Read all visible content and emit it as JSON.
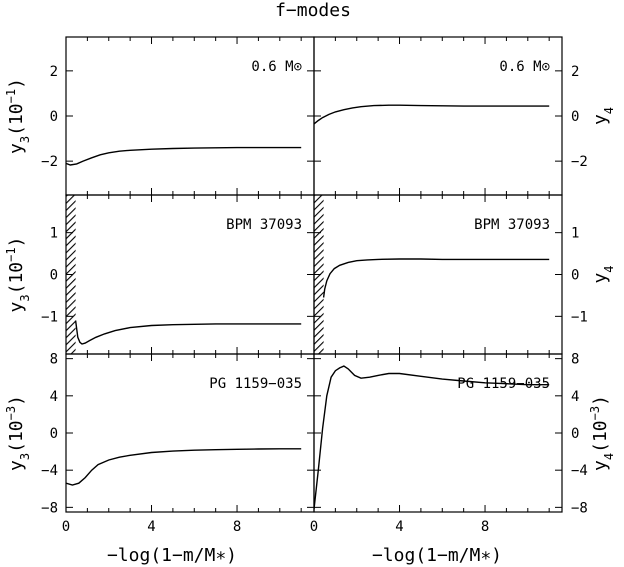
{
  "title": "f−modes",
  "xlabel": "−log(1−m/M∗)",
  "chart_data": [
    {
      "type": "line",
      "label": "0.6 M⊙",
      "ylabel": "y3(10⁻¹)",
      "ylabel_parts": {
        "base": "y",
        "sub": "3",
        "pre": "(10",
        "sup": "−1",
        "post": ")"
      },
      "xlim": [
        0,
        11.6
      ],
      "ylim": [
        -3.5,
        3.5
      ],
      "yticks": [
        -2,
        0,
        2
      ],
      "xticks": [
        0,
        4,
        8
      ],
      "hatch": null,
      "x": [
        0,
        0.2,
        0.5,
        0.8,
        1.2,
        1.6,
        2,
        2.5,
        3,
        4,
        5,
        6,
        7,
        8,
        9,
        10,
        11
      ],
      "y": [
        -2.1,
        -2.17,
        -2.12,
        -2.0,
        -1.85,
        -1.72,
        -1.63,
        -1.56,
        -1.52,
        -1.47,
        -1.44,
        -1.42,
        -1.41,
        -1.4,
        -1.4,
        -1.4,
        -1.4
      ]
    },
    {
      "type": "line",
      "label": "0.6 M⊙",
      "ylabel": "y4",
      "ylabel_parts": {
        "base": "y",
        "sub": "4",
        "pre": "",
        "sup": "",
        "post": ""
      },
      "xlim": [
        0,
        11.6
      ],
      "ylim": [
        -3.5,
        3.5
      ],
      "yticks": [
        -2,
        0,
        2
      ],
      "xticks": [
        0,
        4,
        8
      ],
      "hatch": null,
      "x": [
        0,
        0.2,
        0.4,
        0.7,
        1,
        1.4,
        1.8,
        2.2,
        2.8,
        3.5,
        4,
        5,
        6,
        7,
        8,
        9,
        10,
        11
      ],
      "y": [
        -0.35,
        -0.2,
        -0.07,
        0.07,
        0.18,
        0.28,
        0.36,
        0.41,
        0.46,
        0.48,
        0.48,
        0.46,
        0.45,
        0.44,
        0.44,
        0.44,
        0.44,
        0.44
      ]
    },
    {
      "type": "line",
      "label": "BPM 37093",
      "ylabel": "y3(10⁻¹)",
      "ylabel_parts": {
        "base": "y",
        "sub": "3",
        "pre": "(10",
        "sup": "−1",
        "post": ")"
      },
      "xlim": [
        0,
        11.6
      ],
      "ylim": [
        -1.9,
        1.9
      ],
      "yticks": [
        -1,
        0,
        1
      ],
      "xticks": [
        0,
        4,
        8
      ],
      "hatch": [
        0,
        0.45
      ],
      "x": [
        0.45,
        0.55,
        0.65,
        0.75,
        0.9,
        1.1,
        1.4,
        1.8,
        2.3,
        3,
        4,
        5,
        6,
        7,
        8,
        9,
        10,
        11
      ],
      "y": [
        -1.1,
        -1.5,
        -1.62,
        -1.66,
        -1.64,
        -1.58,
        -1.5,
        -1.42,
        -1.34,
        -1.27,
        -1.22,
        -1.2,
        -1.19,
        -1.18,
        -1.18,
        -1.18,
        -1.18,
        -1.18
      ]
    },
    {
      "type": "line",
      "label": "BPM 37093",
      "ylabel": "y4",
      "ylabel_parts": {
        "base": "y",
        "sub": "4",
        "pre": "",
        "sup": "",
        "post": ""
      },
      "xlim": [
        0,
        11.6
      ],
      "ylim": [
        -1.9,
        1.9
      ],
      "yticks": [
        -1,
        0,
        1
      ],
      "xticks": [
        0,
        4,
        8
      ],
      "hatch": [
        0,
        0.45
      ],
      "x": [
        0.45,
        0.5,
        0.6,
        0.75,
        0.95,
        1.2,
        1.6,
        2,
        2.5,
        3,
        4,
        5,
        6,
        7,
        8,
        9,
        10,
        11
      ],
      "y": [
        -0.55,
        -0.35,
        -0.15,
        0.02,
        0.14,
        0.22,
        0.29,
        0.33,
        0.35,
        0.36,
        0.37,
        0.37,
        0.36,
        0.36,
        0.36,
        0.36,
        0.36,
        0.36
      ]
    },
    {
      "type": "line",
      "label": "PG 1159−035",
      "ylabel": "y3(10⁻³)",
      "ylabel_parts": {
        "base": "y",
        "sub": "3",
        "pre": "(10",
        "sup": "−3",
        "post": ")"
      },
      "xlim": [
        0,
        11.6
      ],
      "ylim": [
        -8.5,
        8.5
      ],
      "yticks": [
        -8,
        -4,
        0,
        4,
        8
      ],
      "xticks": [
        0,
        4,
        8
      ],
      "hatch": null,
      "x": [
        0,
        0.3,
        0.6,
        0.9,
        1.2,
        1.5,
        2,
        2.5,
        3,
        4,
        5,
        6,
        7,
        8,
        9,
        10,
        11
      ],
      "y": [
        -5.4,
        -5.6,
        -5.4,
        -4.8,
        -4.0,
        -3.4,
        -2.9,
        -2.6,
        -2.4,
        -2.1,
        -1.95,
        -1.85,
        -1.8,
        -1.75,
        -1.72,
        -1.7,
        -1.7
      ]
    },
    {
      "type": "line",
      "label": "PG 1159−035",
      "ylabel": "y4(10⁻³)",
      "ylabel_parts": {
        "base": "y",
        "sub": "4",
        "pre": "(10",
        "sup": "−3",
        "post": ")"
      },
      "xlim": [
        0,
        11.6
      ],
      "ylim": [
        -8.5,
        8.5
      ],
      "yticks": [
        -8,
        -4,
        0,
        4,
        8
      ],
      "xticks": [
        0,
        4,
        8
      ],
      "hatch": null,
      "x": [
        0,
        0.2,
        0.4,
        0.6,
        0.8,
        1.0,
        1.2,
        1.4,
        1.6,
        1.9,
        2.2,
        2.6,
        3,
        3.5,
        4,
        5,
        6,
        7,
        8,
        9,
        10,
        11
      ],
      "y": [
        -8.2,
        -4.0,
        0.5,
        4.0,
        6.0,
        6.7,
        7.0,
        7.2,
        6.9,
        6.2,
        5.9,
        6.0,
        6.2,
        6.4,
        6.4,
        6.1,
        5.8,
        5.6,
        5.4,
        5.3,
        5.2,
        5.2
      ]
    }
  ]
}
